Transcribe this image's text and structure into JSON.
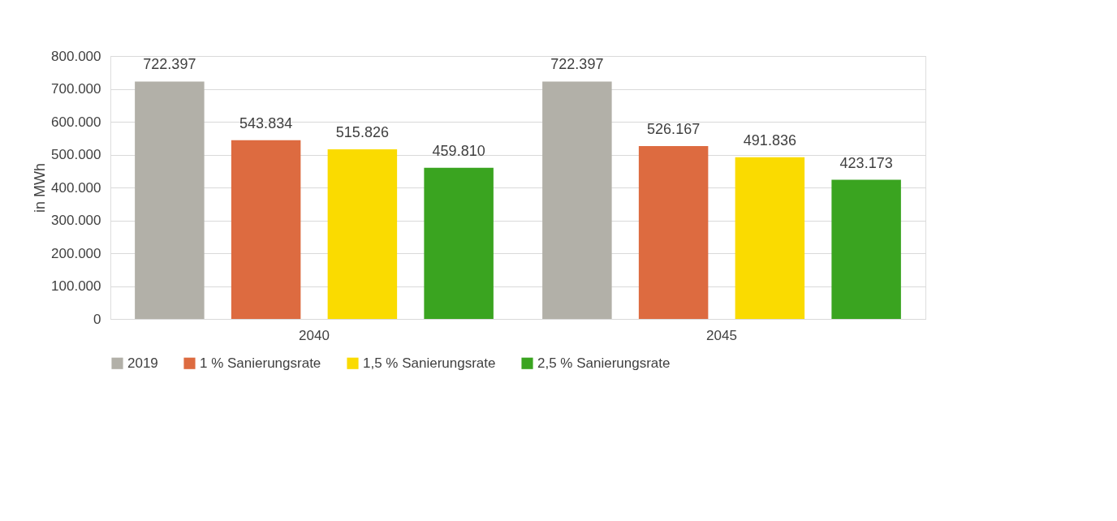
{
  "chart_data": {
    "type": "bar",
    "ylabel": "in MWh",
    "categories": [
      "2040",
      "2045"
    ],
    "series": [
      {
        "name": "2019",
        "color": "#b2b0a8",
        "values": [
          722397,
          722397
        ],
        "value_labels": [
          "722.397",
          "722.397"
        ]
      },
      {
        "name": "1 % Sanierungsrate",
        "color": "#dd6b40",
        "values": [
          543834,
          526167
        ],
        "value_labels": [
          "543.834",
          "526.167"
        ]
      },
      {
        "name": "1,5 % Sanierungsrate",
        "color": "#fadb00",
        "values": [
          515826,
          491836
        ],
        "value_labels": [
          "515.826",
          "491.836"
        ]
      },
      {
        "name": "2,5 % Sanierungsrate",
        "color": "#3aa420",
        "values": [
          459810,
          423173
        ],
        "value_labels": [
          "459.810",
          "423.173"
        ]
      }
    ],
    "ylim": [
      0,
      800000
    ],
    "yticks": [
      0,
      {
        "value": 100000,
        "label": "100.000"
      },
      {
        "value": 200000,
        "label": "200.000"
      },
      {
        "value": 300000,
        "label": "300.000"
      },
      {
        "value": 400000,
        "label": "400.000"
      },
      {
        "value": 500000,
        "label": "500.000"
      },
      {
        "value": 600000,
        "label": "600.000"
      },
      {
        "value": 700000,
        "label": "700.000"
      },
      {
        "value": 800000,
        "label": "800.000"
      }
    ],
    "grid": "y",
    "legend": "bottom"
  }
}
